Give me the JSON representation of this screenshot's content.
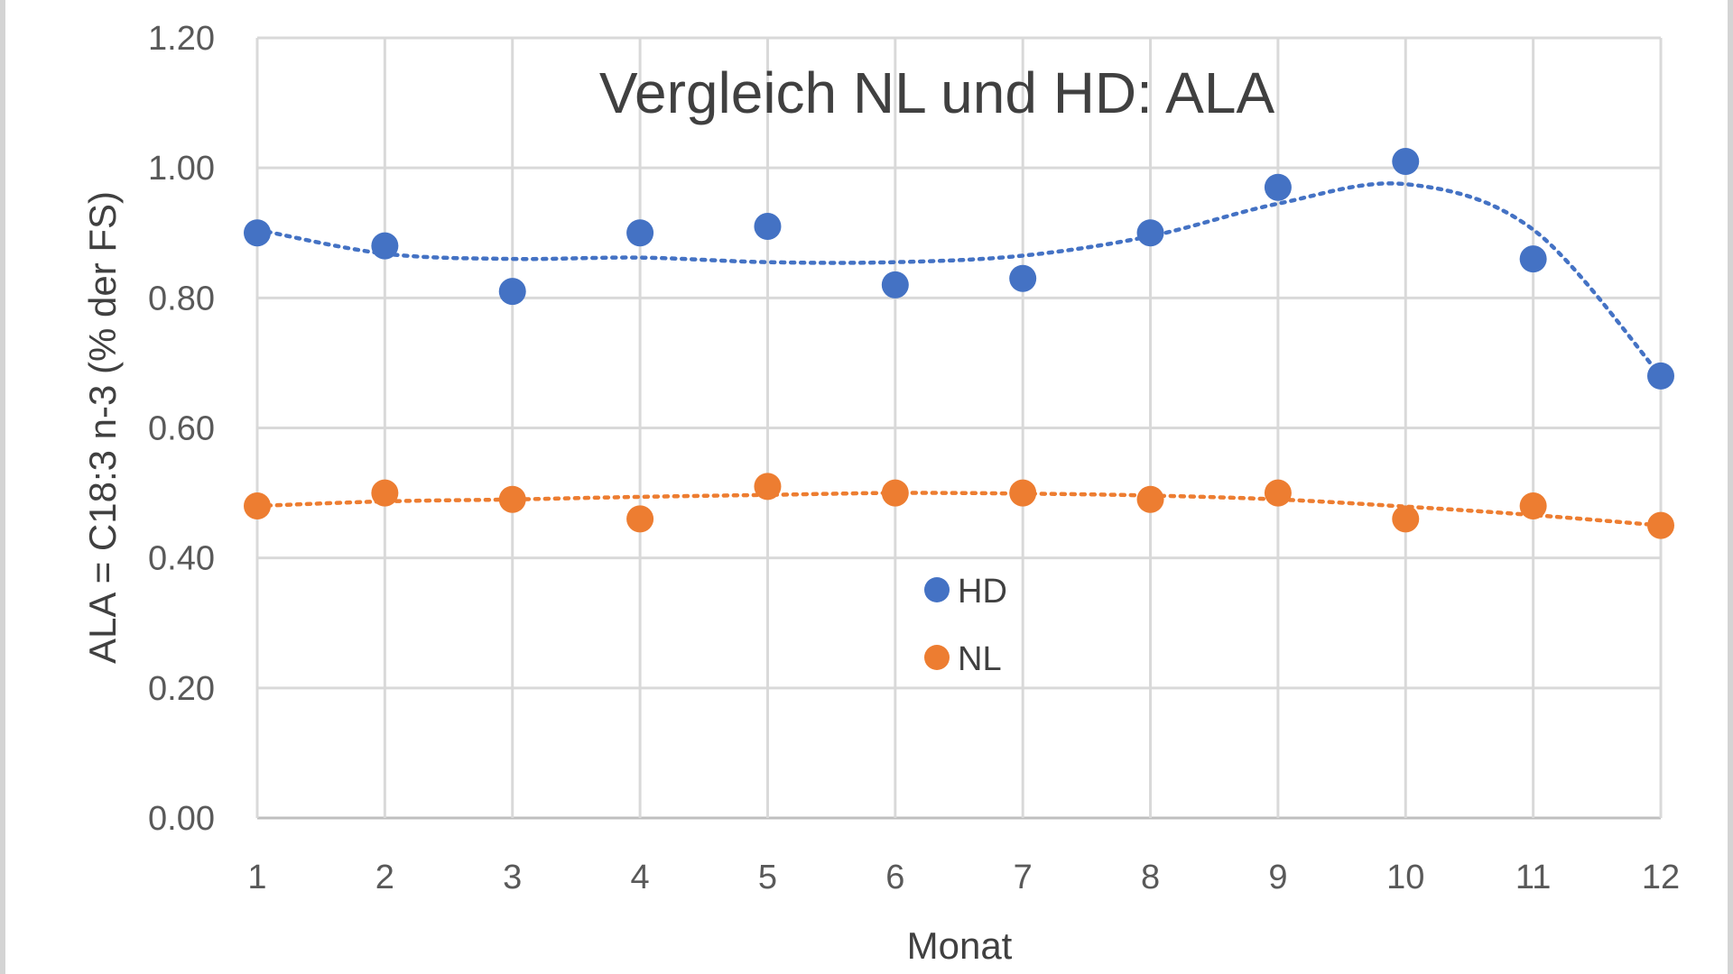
{
  "chart_data": {
    "type": "scatter",
    "title": "Vergleich NL und HD: ALA",
    "xlabel": "Monat",
    "ylabel": "ALA = C18:3 n-3 (% der FS)",
    "xlim": [
      1,
      12
    ],
    "ylim": [
      0,
      1.2
    ],
    "x_ticks": [
      "1",
      "2",
      "3",
      "4",
      "5",
      "6",
      "7",
      "8",
      "9",
      "10",
      "11",
      "12"
    ],
    "y_ticks": [
      "0.00",
      "0.20",
      "0.40",
      "0.60",
      "0.80",
      "1.00",
      "1.20"
    ],
    "grid": true,
    "trendline": "polynomial, dotted",
    "legend_position": "center",
    "series": [
      {
        "name": "HD",
        "color": "#4472C4",
        "x": [
          1,
          2,
          3,
          4,
          5,
          6,
          7,
          8,
          9,
          10,
          11,
          12
        ],
        "values": [
          0.9,
          0.88,
          0.81,
          0.9,
          0.91,
          0.82,
          0.83,
          0.9,
          0.97,
          1.01,
          0.86,
          0.68
        ],
        "trend": [
          0.905,
          0.868,
          0.86,
          0.862,
          0.855,
          0.855,
          0.865,
          0.895,
          0.945,
          0.975,
          0.905,
          0.68
        ]
      },
      {
        "name": "NL",
        "color": "#ED7D31",
        "x": [
          1,
          2,
          3,
          4,
          5,
          6,
          7,
          8,
          9,
          10,
          11,
          12
        ],
        "values": [
          0.48,
          0.5,
          0.49,
          0.46,
          0.51,
          0.5,
          0.5,
          0.49,
          0.5,
          0.46,
          0.48,
          0.45
        ],
        "trend": [
          0.48,
          0.487,
          0.49,
          0.494,
          0.497,
          0.5,
          0.499,
          0.496,
          0.49,
          0.479,
          0.466,
          0.45
        ]
      }
    ]
  }
}
